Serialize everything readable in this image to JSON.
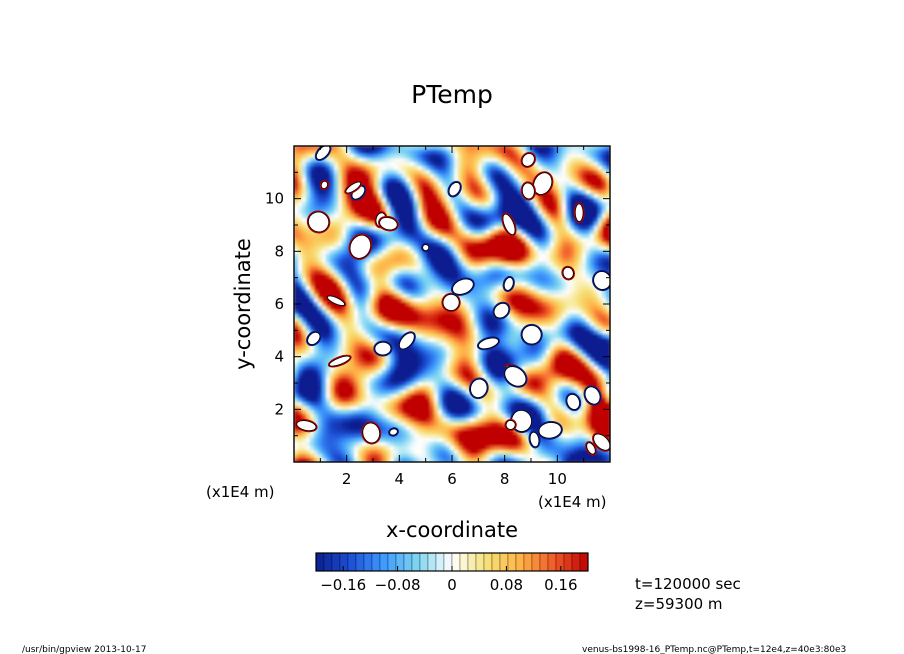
{
  "chart_data": {
    "type": "heatmap",
    "title": "PTemp",
    "xlabel": "x-coordinate",
    "ylabel": "y-coordinate",
    "x_unit_label": "(x1E4 m)",
    "y_unit_label": "(x1E4 m)",
    "xlim": [
      0,
      12
    ],
    "ylim": [
      0,
      12
    ],
    "x_ticks": [
      {
        "value": 2,
        "label": "2"
      },
      {
        "value": 4,
        "label": "4"
      },
      {
        "value": 6,
        "label": "6"
      },
      {
        "value": 8,
        "label": "8"
      },
      {
        "value": 10,
        "label": "10"
      }
    ],
    "y_ticks": [
      {
        "value": 2,
        "label": "2"
      },
      {
        "value": 4,
        "label": "4"
      },
      {
        "value": 6,
        "label": "6"
      },
      {
        "value": 8,
        "label": "8"
      },
      {
        "value": 10,
        "label": "10"
      }
    ],
    "value_range": [
      -0.2,
      0.2
    ],
    "colorbar": {
      "ticks": [
        {
          "value": -0.16,
          "label": "−0.16"
        },
        {
          "value": -0.08,
          "label": "−0.08"
        },
        {
          "value": 0,
          "label": "0"
        },
        {
          "value": 0.08,
          "label": "0.08"
        },
        {
          "value": 0.16,
          "label": "0.16"
        }
      ],
      "levels": 34
    },
    "colormap": [
      "#0a1f8f",
      "#1d4fd6",
      "#3f9bff",
      "#7fd6f0",
      "#ffffff",
      "#f5e27a",
      "#ffb347",
      "#f05a28",
      "#c00000"
    ],
    "annotations": [
      "t=120000 sec",
      "z=59300 m"
    ],
    "footer_left": "/usr/bin/gpview   2013-10-17",
    "footer_right": "venus-bs1998-16_PTemp.nc@PTemp,t=12e4,z=40e3:80e3"
  }
}
